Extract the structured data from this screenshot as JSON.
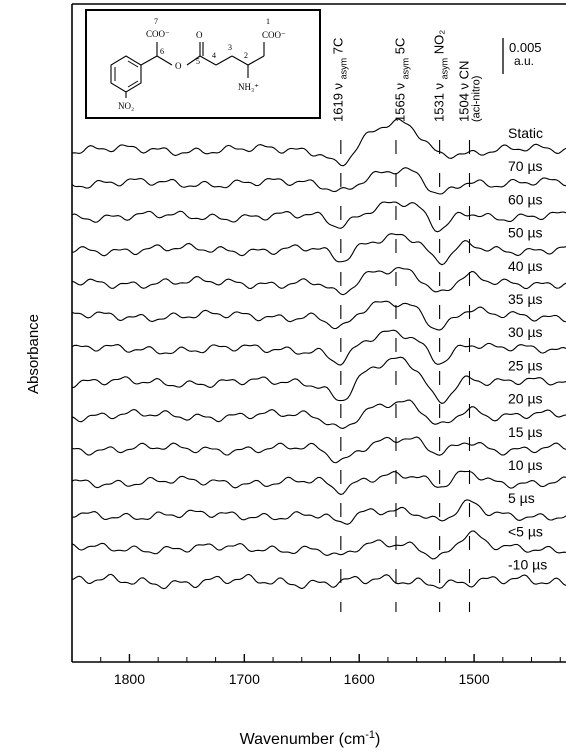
{
  "chart_data": {
    "type": "line",
    "xlabel": "Wavenumber (cm⁻¹)",
    "ylabel": "Absorbance",
    "xlim": [
      1850,
      1420
    ],
    "x_reversed": true,
    "x_ticks": [
      "1800",
      "1700",
      "1600",
      "1500"
    ],
    "x_tick_values": [
      1800,
      1700,
      1600,
      1500
    ],
    "scale_bar": {
      "value": "0.005",
      "unit": "a.u."
    },
    "band_labels": [
      {
        "position": 1619,
        "text": "1619 ν asym 7C"
      },
      {
        "position": 1565,
        "text": "1565 ν asym 5C"
      },
      {
        "position": 1531,
        "text": "1531 ν asym NO₂"
      },
      {
        "position": 1504,
        "text": "1504 ν CN (aci-nitro)"
      }
    ],
    "band_marker_positions": [
      1616,
      1568,
      1530,
      1504
    ],
    "series": [
      {
        "name": "Static",
        "features": [
          [
            1616,
            -0.6
          ],
          [
            1568,
            1.0
          ],
          [
            1531,
            -0.35
          ],
          [
            1504,
            -0.1
          ]
        ]
      },
      {
        "name": "70 µs",
        "features": [
          [
            1616,
            -0.3
          ],
          [
            1568,
            0.45
          ],
          [
            1531,
            -0.6
          ],
          [
            1504,
            0.1
          ]
        ]
      },
      {
        "name": "60 µs",
        "features": [
          [
            1616,
            -0.4
          ],
          [
            1568,
            0.55
          ],
          [
            1531,
            -0.7
          ],
          [
            1504,
            0.15
          ]
        ]
      },
      {
        "name": "50 µs",
        "features": [
          [
            1616,
            -0.5
          ],
          [
            1568,
            0.6
          ],
          [
            1531,
            -0.7
          ],
          [
            1504,
            0.15
          ]
        ]
      },
      {
        "name": "40 µs",
        "features": [
          [
            1616,
            -0.6
          ],
          [
            1568,
            0.6
          ],
          [
            1531,
            -0.6
          ],
          [
            1504,
            0.2
          ]
        ]
      },
      {
        "name": "35 µs",
        "features": [
          [
            1616,
            -0.6
          ],
          [
            1568,
            0.55
          ],
          [
            1531,
            -0.6
          ],
          [
            1504,
            0.2
          ]
        ]
      },
      {
        "name": "30 µs",
        "features": [
          [
            1616,
            -0.55
          ],
          [
            1568,
            0.6
          ],
          [
            1531,
            -0.55
          ],
          [
            1504,
            0.2
          ]
        ]
      },
      {
        "name": "25 µs",
        "features": [
          [
            1616,
            -0.7
          ],
          [
            1568,
            0.8
          ],
          [
            1531,
            -0.9
          ],
          [
            1504,
            0.2
          ]
        ]
      },
      {
        "name": "20 µs",
        "features": [
          [
            1616,
            -0.5
          ],
          [
            1568,
            0.45
          ],
          [
            1531,
            -0.55
          ],
          [
            1504,
            0.3
          ]
        ]
      },
      {
        "name": "15 µs",
        "features": [
          [
            1616,
            -0.5
          ],
          [
            1568,
            0.4
          ],
          [
            1531,
            -0.35
          ],
          [
            1504,
            0.3
          ]
        ]
      },
      {
        "name": "10 µs",
        "features": [
          [
            1616,
            -0.4
          ],
          [
            1568,
            0.35
          ],
          [
            1531,
            -0.3
          ],
          [
            1504,
            0.35
          ]
        ]
      },
      {
        "name": "5 µs",
        "features": [
          [
            1616,
            -0.4
          ],
          [
            1568,
            0.25
          ],
          [
            1531,
            -0.3
          ],
          [
            1504,
            0.4
          ]
        ]
      },
      {
        "name": "<5 µs",
        "features": [
          [
            1616,
            -0.4
          ],
          [
            1568,
            0.2
          ],
          [
            1531,
            -0.35
          ],
          [
            1504,
            0.55
          ]
        ]
      },
      {
        "name": "-10 µs",
        "features": []
      }
    ],
    "grid": false,
    "legend": "labels at right end of each trace"
  },
  "inset": {
    "type": "chemical structure",
    "atom_numbers": [
      "7",
      "6",
      "5",
      "4",
      "3",
      "2",
      "1"
    ],
    "groups": [
      "COO⁻",
      "COO⁻",
      "NO₂",
      "NH₃⁺",
      "O",
      "O"
    ]
  },
  "labels": {
    "unit_mu": "µs"
  }
}
